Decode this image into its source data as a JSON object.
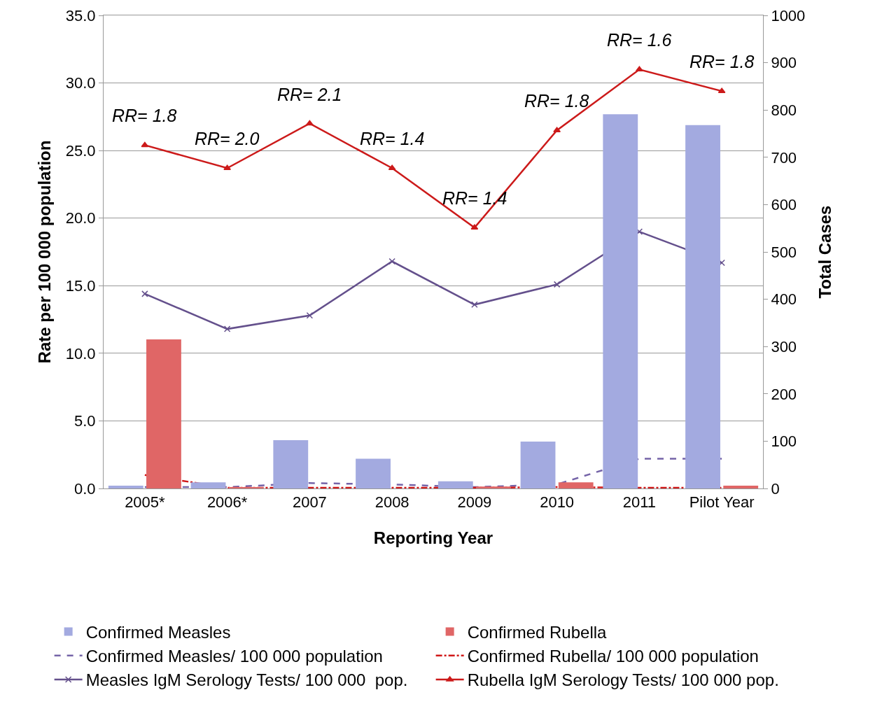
{
  "chart_data": {
    "type": "line",
    "xlabel": "Reporting Year",
    "ylabel": "Rate per 100 000 population",
    "y2label": "Total Cases",
    "categories": [
      "2005*",
      "2006*",
      "2007",
      "2008",
      "2009",
      "2010",
      "2011",
      "Pilot Year"
    ],
    "series": [
      {
        "name": "Confirmed Measles",
        "type": "bar",
        "axis": "y2",
        "color": "#a3aae0",
        "values": [
          6,
          13,
          102,
          63,
          15,
          99,
          791,
          768
        ]
      },
      {
        "name": "Confirmed Rubella",
        "type": "bar",
        "axis": "y2",
        "color": "#e06666",
        "values": [
          315,
          2,
          0,
          0,
          4,
          13,
          0,
          6
        ]
      },
      {
        "name": "Confirmed Measles/ 100 000 population",
        "line_style": "dashed",
        "marker": "none",
        "color": "#7564a8",
        "values": [
          0.1,
          0.1,
          0.4,
          0.3,
          0.1,
          0.3,
          2.2,
          2.2
        ]
      },
      {
        "name": "Confirmed Rubella/ 100 000 population",
        "line_style": "dashdot",
        "marker": "none",
        "color": "#d01818",
        "values": [
          1.0,
          0.05,
          0.05,
          0.05,
          0.05,
          0.1,
          0.05,
          0.05
        ]
      },
      {
        "name": "Measles IgM Serology Tests/ 100 000  pop.",
        "line_style": "solid",
        "marker": "cross",
        "color": "#64508c",
        "values": [
          14.4,
          11.8,
          12.8,
          16.8,
          13.6,
          15.1,
          19.0,
          16.7
        ]
      },
      {
        "name": "Rubella IgM Serology Tests/ 100 000 pop.",
        "line_style": "solid",
        "marker": "triangle",
        "color": "#cc1a1a",
        "values": [
          25.4,
          23.7,
          27.0,
          23.7,
          19.3,
          26.5,
          31.0,
          29.4
        ]
      }
    ],
    "annotations": [
      "RR= 1.8",
      "RR= 2.0",
      "RR= 2.1",
      "RR= 1.4",
      "RR= 1.4",
      "RR= 1.8",
      "RR= 1.6",
      "RR= 1.8"
    ],
    "ylim": [
      0,
      35
    ],
    "yticks": [
      {
        "value": 0,
        "label": "0.0"
      },
      {
        "value": 5,
        "label": "5.0"
      },
      {
        "value": 10,
        "label": "10.0"
      },
      {
        "value": 15,
        "label": "15.0"
      },
      {
        "value": 20,
        "label": "20.0"
      },
      {
        "value": 25,
        "label": "25.0"
      },
      {
        "value": 30,
        "label": "30.0"
      },
      {
        "value": 35,
        "label": "35.0"
      }
    ],
    "y2lim": [
      0,
      1000
    ],
    "y2ticks": [
      0,
      100,
      200,
      300,
      400,
      500,
      600,
      700,
      800,
      900,
      1000
    ],
    "grid": "y",
    "legend": "bottom"
  }
}
